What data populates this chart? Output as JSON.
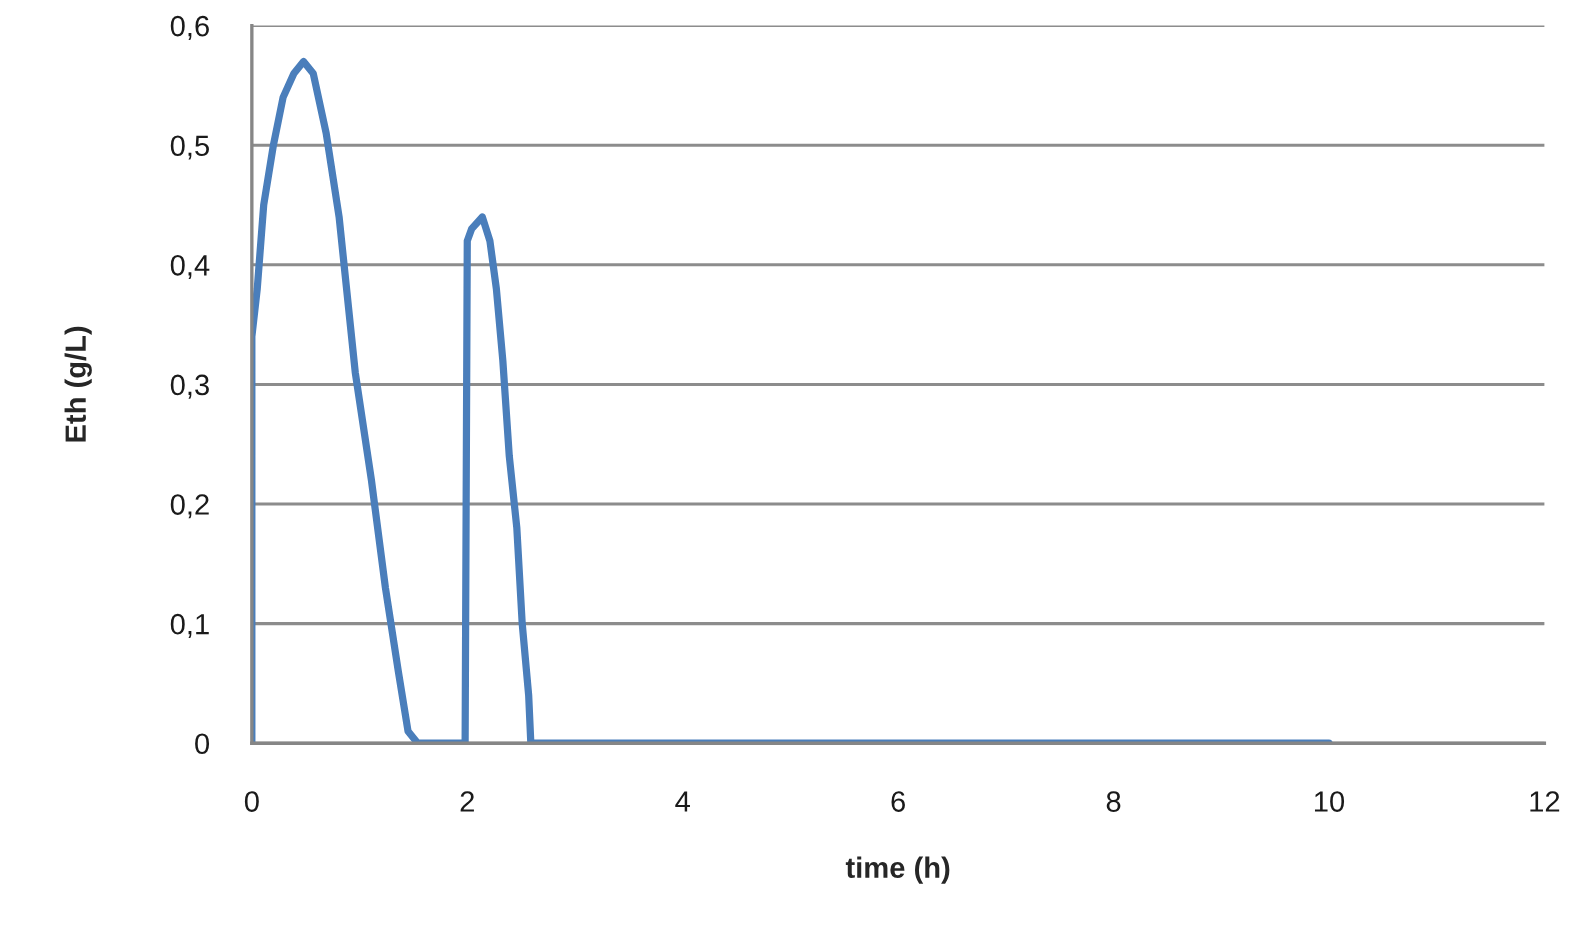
{
  "chart_data": {
    "type": "line",
    "xlabel": "time (h)",
    "ylabel": "Eth (g/L)",
    "x": [
      0,
      0,
      0.05,
      0.11,
      0.2,
      0.29,
      0.39,
      0.48,
      0.57,
      0.69,
      0.81,
      0.96,
      1.11,
      1.24,
      1.36,
      1.45,
      1.54,
      1.98,
      2.0,
      2.04,
      2.14,
      2.21,
      2.27,
      2.33,
      2.39,
      2.46,
      2.51,
      2.57,
      2.59,
      10
    ],
    "series": [
      {
        "color": "#4a7ebb",
        "values": [
          0,
          0.34,
          0.38,
          0.45,
          0.5,
          0.54,
          0.56,
          0.57,
          0.56,
          0.51,
          0.44,
          0.31,
          0.22,
          0.13,
          0.06,
          0.01,
          0,
          0,
          0.42,
          0.43,
          0.44,
          0.42,
          0.38,
          0.32,
          0.24,
          0.18,
          0.1,
          0.04,
          0,
          0
        ]
      }
    ],
    "xlim": [
      0,
      12
    ],
    "xticks": [
      0,
      2,
      4,
      6,
      8,
      10,
      12
    ],
    "ylim": [
      0,
      0.6
    ],
    "yticks": [
      0,
      {
        "value": 0.1,
        "label": "0,1"
      },
      {
        "value": 0.2,
        "label": "0,2"
      },
      {
        "value": 0.3,
        "label": "0,3"
      },
      {
        "value": 0.4,
        "label": "0,4"
      },
      {
        "value": 0.5,
        "label": "0,5"
      },
      {
        "value": 0.6,
        "label": "0,6"
      }
    ],
    "grid": "y",
    "line_style": "solid"
  }
}
